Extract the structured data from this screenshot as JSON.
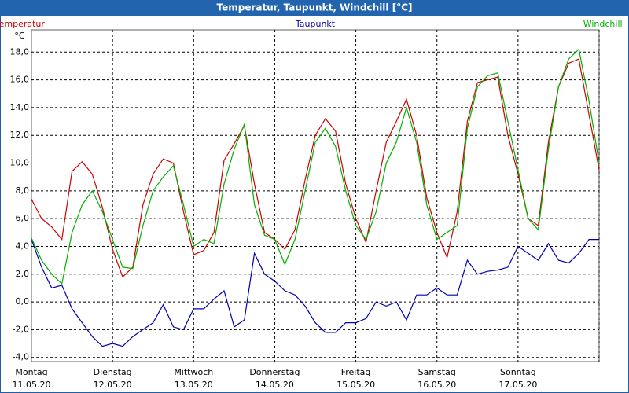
{
  "chart_data": {
    "type": "line",
    "title": "Temperatur, Taupunkt, Windchill [°C]",
    "y_unit": "°C",
    "ylim": [
      -4.3,
      19.6
    ],
    "yticks": [
      {
        "value": -4,
        "label": "-4,0"
      },
      {
        "value": -2,
        "label": "-2,0"
      },
      {
        "value": 0,
        "label": "0,0"
      },
      {
        "value": 2,
        "label": "2,0"
      },
      {
        "value": 4,
        "label": "4,0"
      },
      {
        "value": 6,
        "label": "6,0"
      },
      {
        "value": 8,
        "label": "8,0"
      },
      {
        "value": 10,
        "label": "10,0"
      },
      {
        "value": 12,
        "label": "12,0"
      },
      {
        "value": 14,
        "label": "14,0"
      },
      {
        "value": 16,
        "label": "16,0"
      },
      {
        "value": 18,
        "label": "18,0"
      }
    ],
    "grid": true,
    "days": [
      {
        "day": "Montag",
        "date": "11.05.20"
      },
      {
        "day": "Dienstag",
        "date": "12.05.20"
      },
      {
        "day": "Mittwoch",
        "date": "13.05.20"
      },
      {
        "day": "Donnerstag",
        "date": "14.05.20"
      },
      {
        "day": "Freitag",
        "date": "15.05.20"
      },
      {
        "day": "Samstag",
        "date": "16.05.20"
      },
      {
        "day": "Sonntag",
        "date": "17.05.20"
      }
    ],
    "series": [
      {
        "name": "Temperatur",
        "color": "#d00000",
        "values": [
          7.4,
          6.0,
          5.4,
          4.5,
          9.4,
          10.1,
          9.2,
          6.8,
          3.8,
          1.8,
          2.5,
          7.0,
          9.2,
          10.3,
          10.0,
          6.5,
          3.4,
          3.7,
          5.0,
          10.2,
          11.4,
          12.7,
          8.5,
          5.0,
          4.5,
          3.8,
          5.2,
          8.8,
          12.0,
          13.2,
          12.3,
          8.5,
          6.0,
          4.3,
          8.0,
          11.5,
          13.0,
          14.6,
          12.0,
          7.5,
          5.0,
          3.2,
          6.5,
          13.0,
          15.8,
          16.0,
          16.2,
          12.0,
          9.2,
          6.0,
          5.5,
          11.5,
          15.5,
          17.2,
          17.5,
          13.5,
          9.5
        ]
      },
      {
        "name": "Taupunkt",
        "color": "#0000b0",
        "values": [
          4.5,
          2.5,
          1.0,
          1.2,
          -0.5,
          -1.5,
          -2.5,
          -3.2,
          -3.0,
          -3.2,
          -2.5,
          -2.0,
          -1.5,
          -0.2,
          -1.8,
          -2.0,
          -0.5,
          -0.5,
          0.2,
          0.8,
          -1.8,
          -1.3,
          3.5,
          2.0,
          1.5,
          0.8,
          0.5,
          -0.3,
          -1.5,
          -2.2,
          -2.2,
          -1.5,
          -1.5,
          -1.2,
          0.0,
          -0.3,
          0.0,
          -1.3,
          0.5,
          0.5,
          1.0,
          0.5,
          0.5,
          3.0,
          2.0,
          2.2,
          2.3,
          2.5,
          4.0,
          3.5,
          3.0,
          4.2,
          3.0,
          2.8,
          3.5,
          4.5,
          4.5
        ]
      },
      {
        "name": "Windchill",
        "color": "#00b000",
        "values": [
          4.6,
          3.0,
          2.0,
          1.3,
          5.0,
          7.0,
          8.0,
          6.5,
          4.5,
          2.5,
          2.4,
          5.5,
          8.0,
          9.0,
          9.8,
          7.0,
          4.0,
          4.5,
          4.2,
          8.5,
          11.0,
          12.8,
          7.0,
          4.8,
          4.5,
          2.7,
          4.5,
          8.0,
          11.5,
          12.5,
          11.2,
          8.0,
          5.5,
          4.5,
          6.5,
          10.0,
          11.5,
          14.0,
          11.5,
          7.0,
          4.5,
          5.0,
          5.5,
          12.5,
          15.5,
          16.3,
          16.5,
          13.0,
          9.5,
          6.0,
          5.2,
          11.0,
          15.5,
          17.5,
          18.2,
          14.5,
          10.0
        ]
      }
    ]
  }
}
